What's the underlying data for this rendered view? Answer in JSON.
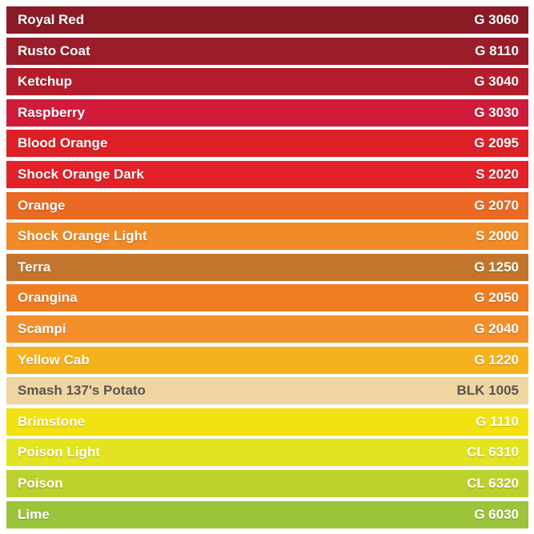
{
  "swatches": [
    {
      "name": "Royal Red",
      "code": "G 3060",
      "color": "#8a1b24",
      "text_color": "light"
    },
    {
      "name": "Rusto Coat",
      "code": "G 8110",
      "color": "#9b1d2a",
      "text_color": "light"
    },
    {
      "name": "Ketchup",
      "code": "G 3040",
      "color": "#b51d2c",
      "text_color": "light"
    },
    {
      "name": "Raspberry",
      "code": "G 3030",
      "color": "#d11b3b",
      "text_color": "light"
    },
    {
      "name": "Blood Orange",
      "code": "G 2095",
      "color": "#dd1f26",
      "text_color": "light"
    },
    {
      "name": "Shock Orange Dark",
      "code": "S 2020",
      "color": "#e42028",
      "text_color": "light"
    },
    {
      "name": "Orange",
      "code": "G 2070",
      "color": "#ea6a23",
      "text_color": "light"
    },
    {
      "name": "Shock Orange Light",
      "code": "S 2000",
      "color": "#ef8a26",
      "text_color": "light"
    },
    {
      "name": "Terra",
      "code": "G 1250",
      "color": "#c2752c",
      "text_color": "light"
    },
    {
      "name": "Orangina",
      "code": "G 2050",
      "color": "#ef7d22",
      "text_color": "light"
    },
    {
      "name": "Scampi",
      "code": "G 2040",
      "color": "#f28f2a",
      "text_color": "light"
    },
    {
      "name": "Yellow Cab",
      "code": "G 1220",
      "color": "#f6b21d",
      "text_color": "light"
    },
    {
      "name": "Smash 137's Potato",
      "code": "BLK 1005",
      "color": "#f0d7a2",
      "text_color": "dark"
    },
    {
      "name": "Brimstone",
      "code": "G 1110",
      "color": "#f2e212",
      "text_color": "light"
    },
    {
      "name": "Poison Light",
      "code": "CL 6310",
      "color": "#e2e41f",
      "text_color": "light"
    },
    {
      "name": "Poison",
      "code": "CL 6320",
      "color": "#bcd12c",
      "text_color": "light"
    },
    {
      "name": "Lime",
      "code": "G 6030",
      "color": "#9cc43a",
      "text_color": "light"
    }
  ]
}
